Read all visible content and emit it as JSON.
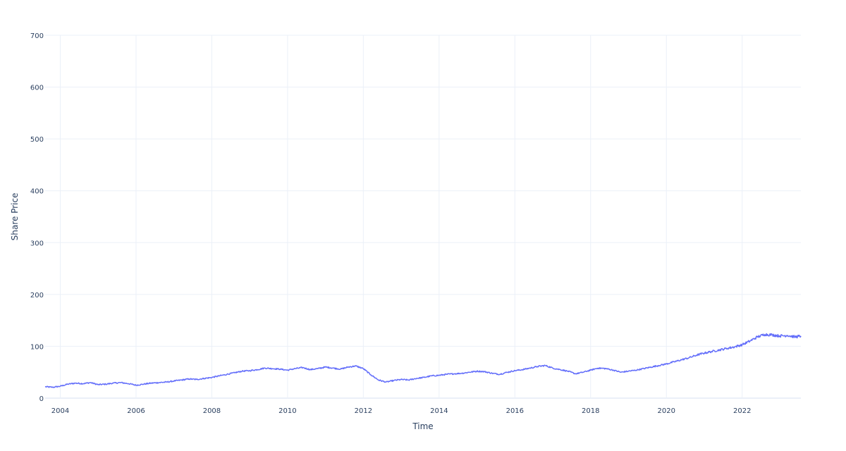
{
  "chart_data": {
    "type": "line",
    "title": "",
    "xlabel": "Time",
    "ylabel": "Share Price",
    "x_tick_labels": [
      "2004",
      "2006",
      "2008",
      "2010",
      "2012",
      "2014",
      "2016",
      "2018",
      "2020",
      "2022"
    ],
    "y_tick_labels": [
      "0",
      "100",
      "200",
      "300",
      "400",
      "500",
      "600",
      "700"
    ],
    "xlim": [
      2003.6,
      2023.55
    ],
    "ylim": [
      0,
      700
    ],
    "grid": true,
    "legend": "none",
    "series": [
      {
        "color": "#636efa",
        "points": [
          [
            2003.6,
            22
          ],
          [
            2003.8,
            21
          ],
          [
            2004.0,
            23
          ],
          [
            2004.2,
            27
          ],
          [
            2004.4,
            29
          ],
          [
            2004.6,
            28
          ],
          [
            2004.8,
            30
          ],
          [
            2005.0,
            26
          ],
          [
            2005.2,
            27
          ],
          [
            2005.4,
            29
          ],
          [
            2005.6,
            30
          ],
          [
            2005.8,
            28
          ],
          [
            2006.0,
            25
          ],
          [
            2006.2,
            27
          ],
          [
            2006.4,
            29
          ],
          [
            2006.6,
            30
          ],
          [
            2006.8,
            31
          ],
          [
            2007.0,
            33
          ],
          [
            2007.2,
            35
          ],
          [
            2007.4,
            37
          ],
          [
            2007.6,
            36
          ],
          [
            2007.8,
            38
          ],
          [
            2008.0,
            40
          ],
          [
            2008.2,
            43
          ],
          [
            2008.4,
            46
          ],
          [
            2008.6,
            49
          ],
          [
            2008.8,
            52
          ],
          [
            2009.0,
            53
          ],
          [
            2009.2,
            55
          ],
          [
            2009.4,
            58
          ],
          [
            2009.6,
            57
          ],
          [
            2009.8,
            56
          ],
          [
            2010.0,
            54
          ],
          [
            2010.2,
            57
          ],
          [
            2010.4,
            59
          ],
          [
            2010.6,
            55
          ],
          [
            2010.8,
            57
          ],
          [
            2011.0,
            60
          ],
          [
            2011.2,
            58
          ],
          [
            2011.4,
            56
          ],
          [
            2011.6,
            60
          ],
          [
            2011.8,
            62
          ],
          [
            2012.0,
            57
          ],
          [
            2012.2,
            45
          ],
          [
            2012.4,
            35
          ],
          [
            2012.6,
            31
          ],
          [
            2012.8,
            34
          ],
          [
            2013.0,
            36
          ],
          [
            2013.2,
            35
          ],
          [
            2013.4,
            38
          ],
          [
            2013.6,
            40
          ],
          [
            2013.8,
            43
          ],
          [
            2014.0,
            44
          ],
          [
            2014.2,
            46
          ],
          [
            2014.4,
            47
          ],
          [
            2014.6,
            48
          ],
          [
            2014.8,
            50
          ],
          [
            2015.0,
            52
          ],
          [
            2015.2,
            51
          ],
          [
            2015.4,
            48
          ],
          [
            2015.6,
            46
          ],
          [
            2015.8,
            50
          ],
          [
            2016.0,
            53
          ],
          [
            2016.2,
            55
          ],
          [
            2016.4,
            58
          ],
          [
            2016.6,
            61
          ],
          [
            2016.8,
            63
          ],
          [
            2017.0,
            58
          ],
          [
            2017.2,
            55
          ],
          [
            2017.4,
            52
          ],
          [
            2017.6,
            47
          ],
          [
            2017.8,
            50
          ],
          [
            2018.0,
            54
          ],
          [
            2018.2,
            58
          ],
          [
            2018.4,
            57
          ],
          [
            2018.6,
            54
          ],
          [
            2018.8,
            50
          ],
          [
            2019.0,
            52
          ],
          [
            2019.2,
            54
          ],
          [
            2019.4,
            57
          ],
          [
            2019.6,
            60
          ],
          [
            2019.8,
            63
          ],
          [
            2020.0,
            66
          ],
          [
            2020.2,
            70
          ],
          [
            2020.4,
            74
          ],
          [
            2020.6,
            78
          ],
          [
            2020.8,
            83
          ],
          [
            2021.0,
            87
          ],
          [
            2021.2,
            90
          ],
          [
            2021.4,
            93
          ],
          [
            2021.6,
            96
          ],
          [
            2021.8,
            99
          ],
          [
            2022.0,
            103
          ],
          [
            2022.2,
            110
          ],
          [
            2022.4,
            118
          ],
          [
            2022.6,
            123
          ],
          [
            2022.8,
            122
          ],
          [
            2023.0,
            120
          ],
          [
            2023.2,
            121
          ],
          [
            2023.4,
            118
          ],
          [
            2023.55,
            120
          ]
        ]
      }
    ]
  }
}
